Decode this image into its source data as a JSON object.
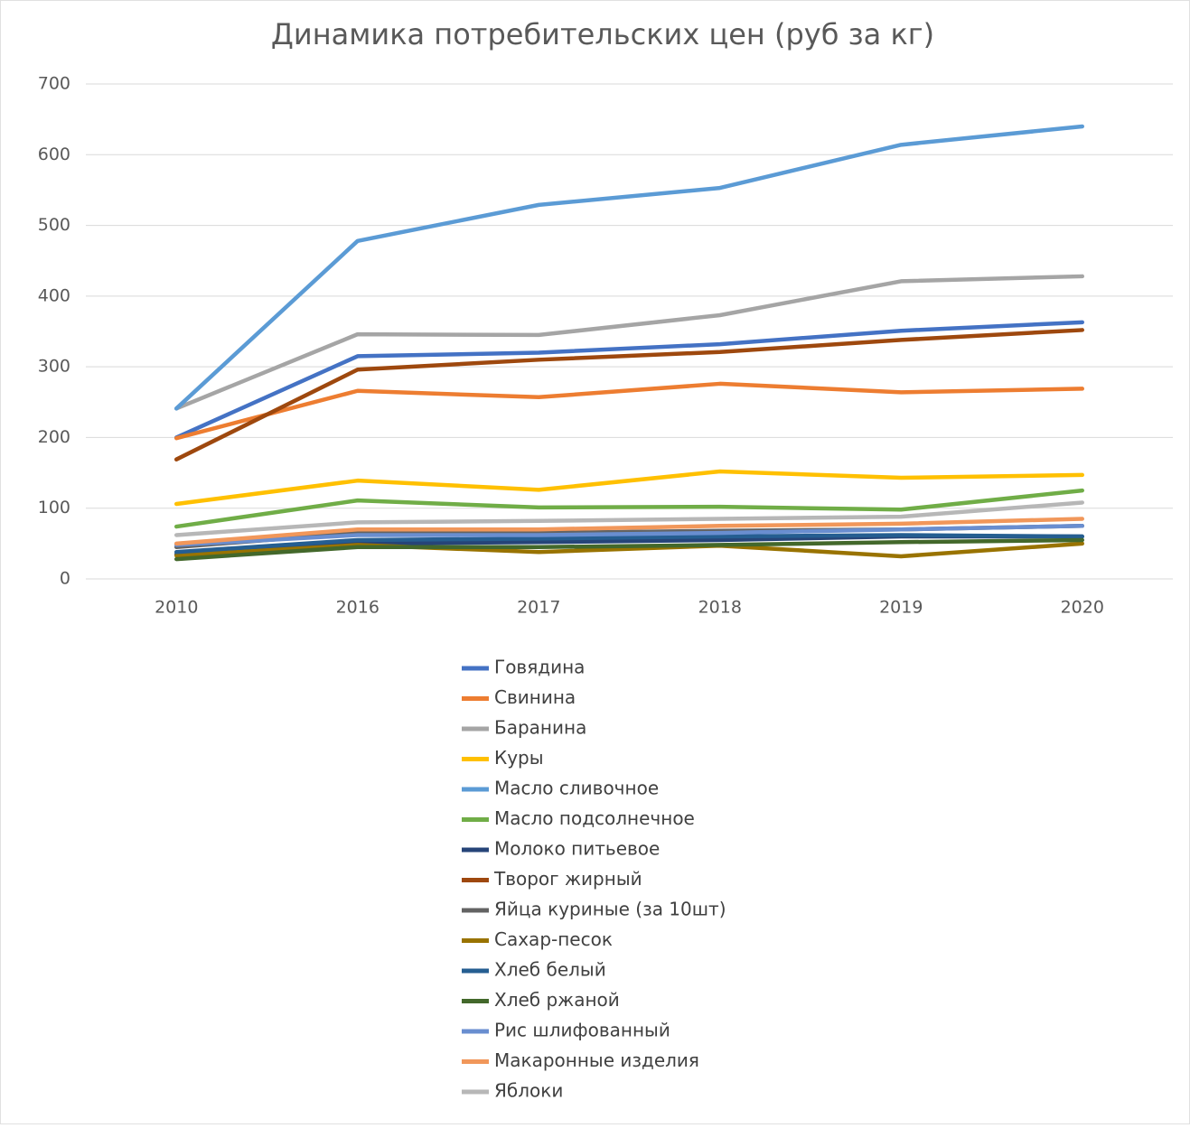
{
  "chart_data": {
    "type": "line",
    "title": "Динамика потребительских цен (руб за кг)",
    "categories": [
      "2010",
      "2016",
      "2017",
      "2018",
      "2019",
      "2020"
    ],
    "ylim": [
      0,
      700
    ],
    "yticks": [
      0,
      100,
      200,
      300,
      400,
      500,
      600,
      700
    ],
    "grid": true,
    "legend": "bottom",
    "series": [
      {
        "name": "Говядина",
        "color": "#4472c4",
        "values": [
          200,
          315,
          320,
          332,
          351,
          363
        ]
      },
      {
        "name": "Свинина",
        "color": "#ed7d31",
        "values": [
          199,
          266,
          257,
          276,
          264,
          269
        ]
      },
      {
        "name": "Баранина",
        "color": "#a5a5a5",
        "values": [
          241,
          346,
          345,
          373,
          421,
          428
        ]
      },
      {
        "name": "Куры",
        "color": "#ffc000",
        "values": [
          106,
          139,
          126,
          152,
          143,
          147
        ]
      },
      {
        "name": "Масло сливочное",
        "color": "#5b9bd5",
        "values": [
          241,
          478,
          529,
          553,
          614,
          640
        ]
      },
      {
        "name": "Масло подсолнечное",
        "color": "#70ad47",
        "values": [
          74,
          111,
          101,
          102,
          98,
          125
        ]
      },
      {
        "name": "Молоко питьевое",
        "color": "#264478",
        "values": [
          35,
          50,
          52,
          55,
          60,
          60
        ]
      },
      {
        "name": "Творог жирный",
        "color": "#9e480e",
        "values": [
          169,
          296,
          310,
          321,
          338,
          352
        ]
      },
      {
        "name": "Яйца куриные (за 10шт)",
        "color": "#636363",
        "values": [
          45,
          65,
          65,
          68,
          70,
          75
        ]
      },
      {
        "name": "Сахар-песок",
        "color": "#997300",
        "values": [
          33,
          48,
          38,
          47,
          32,
          50
        ]
      },
      {
        "name": "Хлеб белый",
        "color": "#255e91",
        "values": [
          38,
          55,
          57,
          60,
          62,
          60
        ]
      },
      {
        "name": "Хлеб ржаной",
        "color": "#43682b",
        "values": [
          28,
          45,
          45,
          48,
          52,
          55
        ]
      },
      {
        "name": "Рис шлифованный",
        "color": "#698ed0",
        "values": [
          48,
          62,
          62,
          65,
          70,
          75
        ]
      },
      {
        "name": "Макаронные изделия",
        "color": "#f1975a",
        "values": [
          50,
          70,
          70,
          75,
          78,
          85
        ]
      },
      {
        "name": "Яблоки",
        "color": "#b7b7b7",
        "values": [
          62,
          80,
          82,
          85,
          88,
          108
        ]
      }
    ]
  }
}
